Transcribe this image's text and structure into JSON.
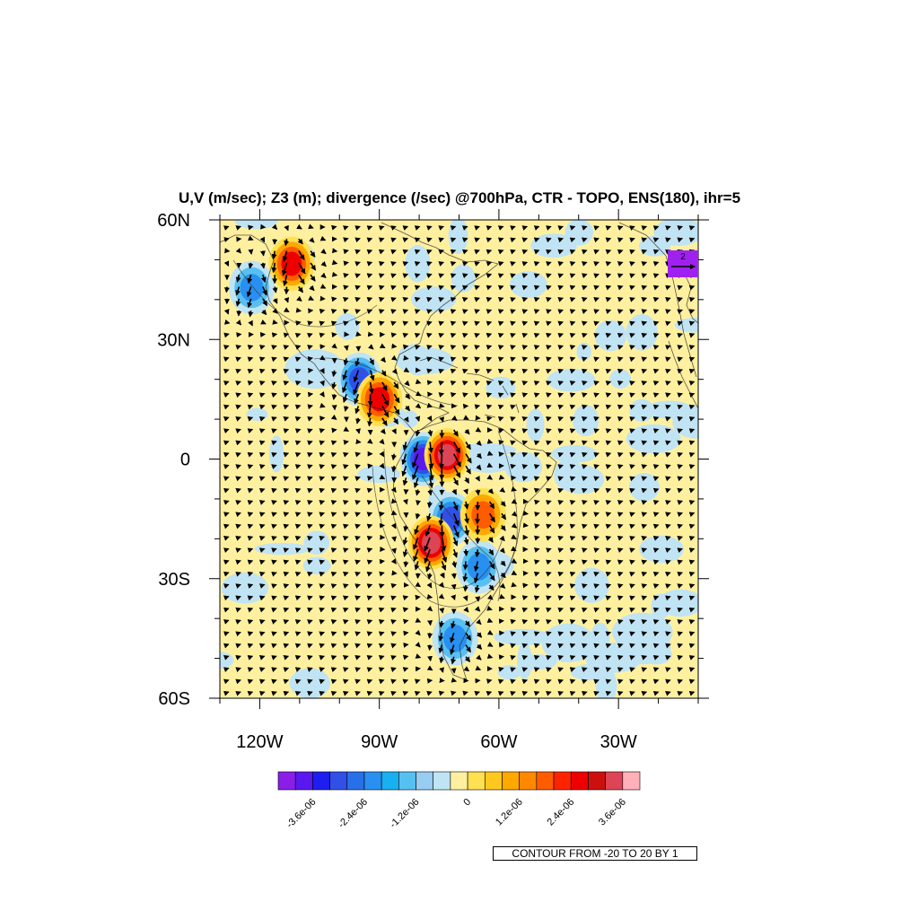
{
  "title": "U,V (m/sec); Z3 (m); divergence (/sec) @700hPa, CTR - TOPO, ENS(180), ihr=5",
  "contour_info": "CONTOUR FROM -20 TO 20 BY 1",
  "reference_vector": {
    "value": "2",
    "color": "#a020f0"
  },
  "map": {
    "projection": "cylindrical equidistant",
    "lon_range": [
      -130,
      -10
    ],
    "lat_range": [
      -60,
      60
    ],
    "lat_ticks": [
      {
        "lat": 60,
        "label": "60N"
      },
      {
        "lat": 30,
        "label": "30N"
      },
      {
        "lat": 0,
        "label": "0"
      },
      {
        "lat": -30,
        "label": "30S"
      },
      {
        "lat": -60,
        "label": "60S"
      }
    ],
    "lon_ticks": [
      {
        "lon": -120,
        "label": "120W"
      },
      {
        "lon": -90,
        "label": "90W"
      },
      {
        "lon": -60,
        "label": "60W"
      },
      {
        "lon": -30,
        "label": "30W"
      }
    ],
    "background_fill": "#fff0a0"
  },
  "colorbar": {
    "colors": [
      "#8a1ee8",
      "#5a18f0",
      "#1e1ef0",
      "#3050e8",
      "#2870e8",
      "#2890f0",
      "#18b0f0",
      "#58c0f0",
      "#98ccf0",
      "#c0e4f4",
      "#fff0a0",
      "#ffe050",
      "#ffc820",
      "#ffa800",
      "#ff8800",
      "#ff5c00",
      "#ff2400",
      "#ee0000",
      "#cc1010",
      "#dd4455",
      "#ffb0b8"
    ],
    "labels": [
      {
        "pos": 2,
        "text": "-3.6e-06"
      },
      {
        "pos": 5,
        "text": "-2.4e-06"
      },
      {
        "pos": 8,
        "text": "-1.2e-06"
      },
      {
        "pos": 11,
        "text": "0"
      },
      {
        "pos": 14,
        "text": "1.2e-06"
      },
      {
        "pos": 17,
        "text": "2.4e-06"
      },
      {
        "pos": 20,
        "text": "3.6e-06"
      }
    ]
  },
  "features": {
    "negative_centers": [
      {
        "lon": -122,
        "lat": 43,
        "strength": 3
      },
      {
        "lon": -95,
        "lat": 20,
        "strength": 4
      },
      {
        "lon": -79,
        "lat": 0,
        "strength": 5
      },
      {
        "lon": -72,
        "lat": -15,
        "strength": 4
      },
      {
        "lon": -65,
        "lat": -27,
        "strength": 3
      },
      {
        "lon": -71,
        "lat": -45,
        "strength": 3
      }
    ],
    "positive_centers": [
      {
        "lon": -112,
        "lat": 49,
        "strength": 4
      },
      {
        "lon": -90,
        "lat": 15,
        "strength": 4
      },
      {
        "lon": -73,
        "lat": 1,
        "strength": 5
      },
      {
        "lon": -77,
        "lat": -21,
        "strength": 5
      },
      {
        "lon": -64,
        "lat": -14,
        "strength": 3
      }
    ]
  }
}
